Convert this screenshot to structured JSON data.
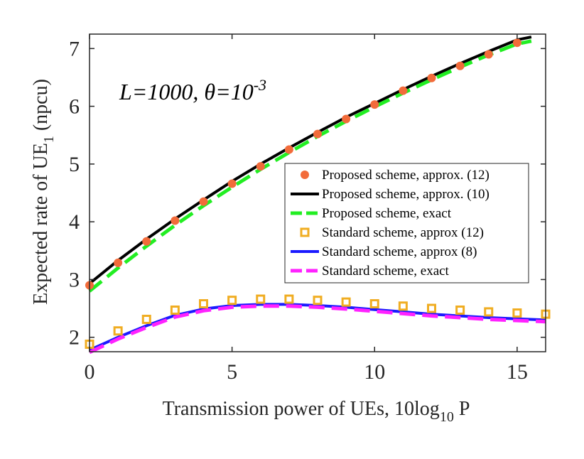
{
  "chart_data": {
    "type": "line",
    "xlabel": "Transmission power of UEs, 10log",
    "xlabel_sub": "10",
    "xlabel_tail": " P",
    "ylabel": "Expected rate of UE",
    "ylabel_sub": "1",
    "ylabel_tail": " (npcu)",
    "annotation": {
      "text": "L=1000, θ=10",
      "sup": "-3"
    },
    "xlim": [
      0,
      16
    ],
    "ylim": [
      1.75,
      7.25
    ],
    "xticks": [
      0,
      5,
      10,
      15
    ],
    "xtick_labels": [
      "0",
      "5",
      "10",
      "15"
    ],
    "yticks": [
      2,
      3,
      4,
      5,
      6,
      7
    ],
    "ytick_labels": [
      "2",
      "3",
      "4",
      "5",
      "6",
      "7"
    ],
    "grid": false,
    "legend_position": "right-middle",
    "series": [
      {
        "name": "Proposed scheme, approx. (12)",
        "style": "marker-circle",
        "color": "#f26b3a",
        "x": [
          0,
          1,
          2,
          3,
          4,
          5,
          6,
          7,
          8,
          9,
          10,
          11,
          12,
          13,
          14,
          15
        ],
        "values": [
          2.9,
          3.29,
          3.66,
          4.02,
          4.35,
          4.66,
          4.96,
          5.25,
          5.52,
          5.78,
          6.03,
          6.27,
          6.49,
          6.7,
          6.9,
          7.1
        ]
      },
      {
        "name": "Proposed scheme, approx. (10)",
        "style": "line-solid",
        "color": "#000000",
        "x": [
          0,
          1,
          2,
          3,
          4,
          5,
          6,
          7,
          8,
          9,
          10,
          11,
          12,
          13,
          14,
          15,
          15.5
        ],
        "values": [
          2.93,
          3.33,
          3.7,
          4.05,
          4.38,
          4.7,
          5.0,
          5.28,
          5.55,
          5.81,
          6.05,
          6.29,
          6.52,
          6.74,
          6.95,
          7.15,
          7.2
        ]
      },
      {
        "name": "Proposed scheme, exact",
        "style": "line-dashed",
        "color": "#22ee22",
        "x": [
          0,
          1,
          2,
          3,
          4,
          5,
          6,
          7,
          8,
          9,
          10,
          11,
          12,
          13,
          14,
          15,
          15.5
        ],
        "values": [
          2.8,
          3.2,
          3.58,
          3.94,
          4.28,
          4.6,
          4.91,
          5.2,
          5.48,
          5.74,
          5.99,
          6.23,
          6.46,
          6.68,
          6.89,
          7.08,
          7.13
        ]
      },
      {
        "name": "Standard scheme, approx (12)",
        "style": "marker-square",
        "color": "#f0ad22",
        "x": [
          0,
          1,
          2,
          3,
          4,
          5,
          6,
          7,
          8,
          9,
          10,
          11,
          12,
          13,
          14,
          15,
          16
        ],
        "values": [
          1.88,
          2.11,
          2.31,
          2.47,
          2.58,
          2.64,
          2.66,
          2.66,
          2.64,
          2.61,
          2.58,
          2.54,
          2.5,
          2.47,
          2.44,
          2.42,
          2.4
        ]
      },
      {
        "name": "Standard scheme, approx (8)",
        "style": "line-solid",
        "color": "#1a1aff",
        "x": [
          0,
          1,
          2,
          3,
          4,
          5,
          6,
          7,
          8,
          9,
          10,
          11,
          12,
          13,
          14,
          15,
          16
        ],
        "values": [
          1.78,
          2.0,
          2.2,
          2.38,
          2.49,
          2.55,
          2.57,
          2.57,
          2.55,
          2.52,
          2.48,
          2.44,
          2.4,
          2.37,
          2.34,
          2.32,
          2.3
        ]
      },
      {
        "name": "Standard scheme, exact",
        "style": "line-dashed",
        "color": "#ff22ff",
        "x": [
          0,
          1,
          2,
          3,
          4,
          5,
          6,
          7,
          8,
          9,
          10,
          11,
          12,
          13,
          14,
          15,
          16
        ],
        "values": [
          1.74,
          1.97,
          2.17,
          2.35,
          2.46,
          2.52,
          2.54,
          2.54,
          2.52,
          2.49,
          2.45,
          2.41,
          2.37,
          2.34,
          2.31,
          2.29,
          2.27
        ]
      }
    ]
  }
}
